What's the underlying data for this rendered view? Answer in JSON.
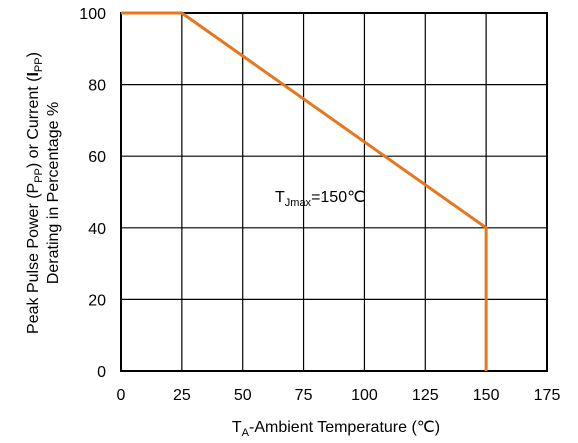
{
  "chart_data": {
    "type": "line",
    "x": [
      0,
      25,
      150,
      150
    ],
    "y": [
      100,
      100,
      40,
      0
    ],
    "xlim": [
      0,
      175
    ],
    "ylim": [
      0,
      100
    ],
    "xticks": [
      0,
      25,
      50,
      75,
      100,
      125,
      150,
      175
    ],
    "yticks": [
      0,
      20,
      40,
      60,
      80,
      100
    ],
    "x_tick_labels": [
      "0",
      "25",
      "50",
      "75",
      "100",
      "125",
      "150",
      "175"
    ],
    "y_tick_labels": [
      "0",
      "20",
      "40",
      "60",
      "80",
      "100"
    ],
    "xlabel": {
      "prefix": "T",
      "sub": "A",
      "rest": "-Ambient Temperature (℃)"
    },
    "ylabel": {
      "line1_a": "Peak Pulse Power (P",
      "line1_sub1": "PP",
      "line1_b": ") or Current (",
      "line1_bold": "I",
      "line1_sub2": "PP",
      "line1_c": ")",
      "line2": "Derating in Percentage %"
    },
    "annotation": {
      "prefix": "T",
      "sub": "Jmax",
      "rest": "=150℃"
    },
    "grid": true,
    "line_color": "#E8761C"
  }
}
